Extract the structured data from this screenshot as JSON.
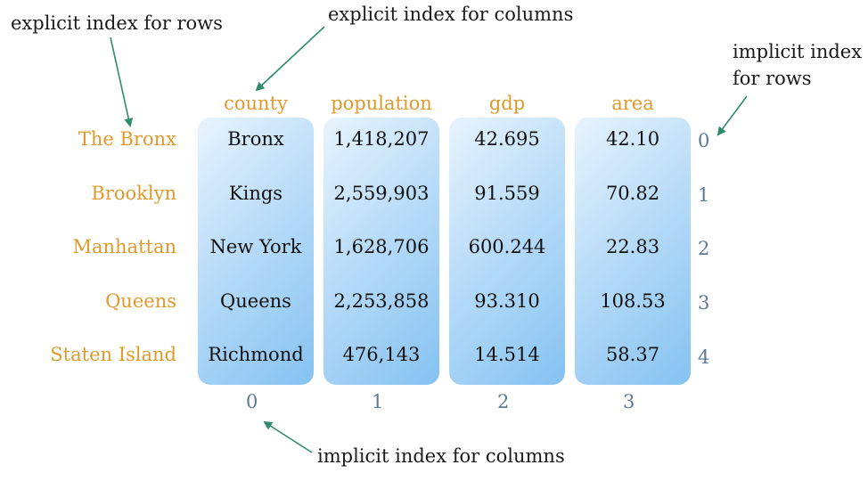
{
  "annotations": {
    "explicit_rows": "explicit index for rows",
    "explicit_columns": "explicit index for columns",
    "implicit_rows_line1": "implicit index",
    "implicit_rows_line2": "for rows",
    "implicit_columns": "implicit index for columns"
  },
  "colors": {
    "explicit_index": "#e09a2b",
    "implicit_index": "#5f7a93",
    "arrow": "#2e8b6e",
    "column_fill": "#9fcff5"
  },
  "columns": [
    "county",
    "population",
    "gdp",
    "area"
  ],
  "row_labels": [
    "The Bronx",
    "Brooklyn",
    "Manhattan",
    "Queens",
    "Staten Island"
  ],
  "implicit_row_index": [
    "0",
    "1",
    "2",
    "3",
    "4"
  ],
  "implicit_col_index": [
    "0",
    "1",
    "2",
    "3"
  ],
  "rows": [
    [
      "Bronx",
      "1,418,207",
      "42.695",
      "42.10"
    ],
    [
      "Kings",
      "2,559,903",
      "91.559",
      "70.82"
    ],
    [
      "New York",
      "1,628,706",
      "600.244",
      "22.83"
    ],
    [
      "Queens",
      "2,253,858",
      "93.310",
      "108.53"
    ],
    [
      "Richmond",
      "476,143",
      "14.514",
      "58.37"
    ]
  ]
}
